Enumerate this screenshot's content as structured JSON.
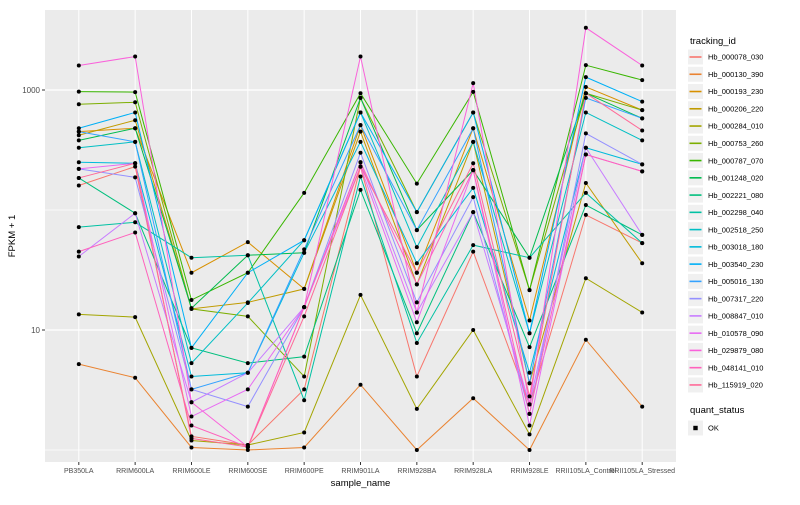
{
  "figure": {
    "x_axis_title": "sample_name",
    "y_axis_title": "FPKM + 1",
    "legend_title": "tracking_id",
    "legend2_title": "quant_status",
    "legend2_items": [
      "OK"
    ],
    "colors": {
      "panel_bg": "#EBEBEB",
      "grid": "#FFFFFF",
      "tick_label": "#4D4D4D",
      "axis_title": "#000000",
      "point": "#000000",
      "legend_key_bg": "#F0F0F0"
    }
  },
  "chart_data": {
    "type": "line",
    "y_scale": "log10",
    "title": "",
    "xlabel": "sample_name",
    "ylabel": "FPKM + 1",
    "ylim_log": [
      1,
      3500
    ],
    "grid": "on",
    "legend_position": "right",
    "y_ticks": [
      {
        "label": "1000",
        "value": 1000
      },
      {
        "label": "10",
        "value": 10
      }
    ],
    "y_gridlines_major": [
      1000,
      10
    ],
    "y_gridlines_minor": [
      100,
      1
    ],
    "categories": [
      "PB350LA",
      "RRIM600LA",
      "RRIM600LE",
      "RRIM600SE",
      "RRIM600PE",
      "RRIM901LA",
      "RRIM928BA",
      "RRIM928LA",
      "RRIM928LE",
      "RRII105LA_Control",
      "RRII105LA_Stressed"
    ],
    "point_marker": {
      "shape": "dot",
      "color": "#000000",
      "legend_label": "OK"
    },
    "series": [
      {
        "name": "Hb_000078_030",
        "color": "#F8766D",
        "values": [
          160,
          230,
          1.3,
          1.1,
          3.2,
          230,
          4.1,
          45,
          2.4,
          91,
          53
        ]
      },
      {
        "name": "Hb_000130_390",
        "color": "#EA8331",
        "values": [
          5.2,
          4,
          1.05,
          1,
          1.05,
          3.5,
          1,
          2.7,
          1,
          8.3,
          2.3
        ]
      },
      {
        "name": "Hb_000193_230",
        "color": "#D89000",
        "values": [
          450,
          480,
          30,
          54,
          22,
          510,
          30,
          480,
          12,
          1060,
          680
        ]
      },
      {
        "name": "Hb_000206_220",
        "color": "#C09B00",
        "values": [
          420,
          560,
          15,
          17,
          22,
          450,
          24,
          370,
          3.6,
          168,
          36
        ]
      },
      {
        "name": "Hb_000284_010",
        "color": "#A3A500",
        "values": [
          13.5,
          12.8,
          1.2,
          1.1,
          1.4,
          19.6,
          2.2,
          10,
          1.35,
          27,
          14
        ]
      },
      {
        "name": "Hb_000753_260",
        "color": "#7CAE00",
        "values": [
          760,
          790,
          15,
          13,
          4.1,
          860,
          96,
          650,
          21.5,
          940,
          680
        ]
      },
      {
        "name": "Hb_000787_070",
        "color": "#39B600",
        "values": [
          970,
          960,
          17.8,
          30,
          139,
          940,
          166,
          965,
          21.5,
          1610,
          1210
        ]
      },
      {
        "name": "Hb_001248_020",
        "color": "#00BB4E",
        "values": [
          380,
          480,
          15.2,
          42,
          44,
          860,
          68,
          215,
          40,
          940,
          580
        ]
      },
      {
        "name": "Hb_002221_080",
        "color": "#00BF7D",
        "values": [
          185,
          94,
          7.1,
          5.3,
          6,
          147,
          9.4,
          96,
          7.2,
          110,
          62
        ]
      },
      {
        "name": "Hb_002298_040",
        "color": "#00C1A3",
        "values": [
          72,
          79,
          40,
          42,
          2.6,
          190,
          7.8,
          51,
          40,
          139,
          53
        ]
      },
      {
        "name": "Hb_002518_250",
        "color": "#00BFC4",
        "values": [
          330,
          370,
          5.3,
          16.8,
          56,
          650,
          49,
          370,
          9.4,
          650,
          380
        ]
      },
      {
        "name": "Hb_003018_180",
        "color": "#00BBDB",
        "values": [
          250,
          245,
          4.1,
          4.4,
          44,
          370,
          36,
          153,
          4.4,
          330,
          240
        ]
      },
      {
        "name": "Hb_003540_230",
        "color": "#00B0F6",
        "values": [
          480,
          650,
          7.1,
          30,
          56,
          650,
          96,
          650,
          9.4,
          1280,
          800
        ]
      },
      {
        "name": "Hb_005016_130",
        "color": "#35A2FF",
        "values": [
          450,
          370,
          3.2,
          4.4,
          47,
          510,
          68,
          480,
          3.6,
          860,
          580
        ]
      },
      {
        "name": "Hb_007317_220",
        "color": "#9590FF",
        "values": [
          220,
          187,
          3.2,
          2.3,
          15.5,
          300,
          17,
          128,
          2,
          435,
          240
        ]
      },
      {
        "name": "Hb_008847_010",
        "color": "#C77CFF",
        "values": [
          41,
          94,
          2.5,
          4.4,
          15.5,
          250,
          14,
          96,
          2.4,
          330,
          62
        ]
      },
      {
        "name": "Hb_010578_090",
        "color": "#E76BF3",
        "values": [
          220,
          245,
          1.9,
          3.2,
          15.5,
          230,
          11.6,
          215,
          1.6,
          290,
          210
        ]
      },
      {
        "name": "Hb_029879_080",
        "color": "#FA62DB",
        "values": [
          1600,
          1900,
          2.5,
          1.06,
          15.5,
          1900,
          14,
          1140,
          2.4,
          3300,
          1600
        ]
      },
      {
        "name": "Hb_048141_010",
        "color": "#FF62BC",
        "values": [
          45,
          65,
          1.6,
          1.06,
          15.5,
          250,
          24,
          215,
          2,
          290,
          210
        ]
      },
      {
        "name": "Hb_115919_020",
        "color": "#FF6A98",
        "values": [
          185,
          245,
          1.25,
          1.06,
          13,
          230,
          30,
          245,
          2.8,
          940,
          460
        ]
      }
    ]
  }
}
